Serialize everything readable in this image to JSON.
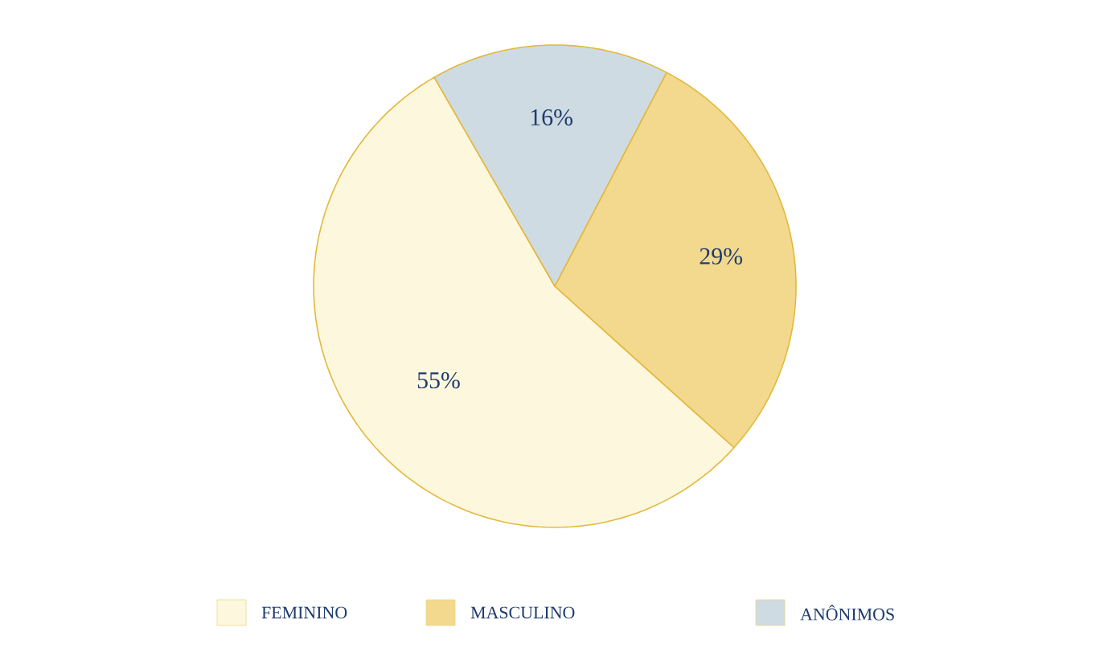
{
  "chart_data": {
    "type": "pie",
    "categories": [
      "FEMININO",
      "MASCULINO",
      "ANÔNIMOS"
    ],
    "values": [
      55,
      29,
      16
    ],
    "colors": [
      "#fdf8dd",
      "#f2d98e",
      "#cfdbe3"
    ],
    "legend": "bottom",
    "value_labels": [
      "55%",
      "29%",
      "16%"
    ]
  }
}
